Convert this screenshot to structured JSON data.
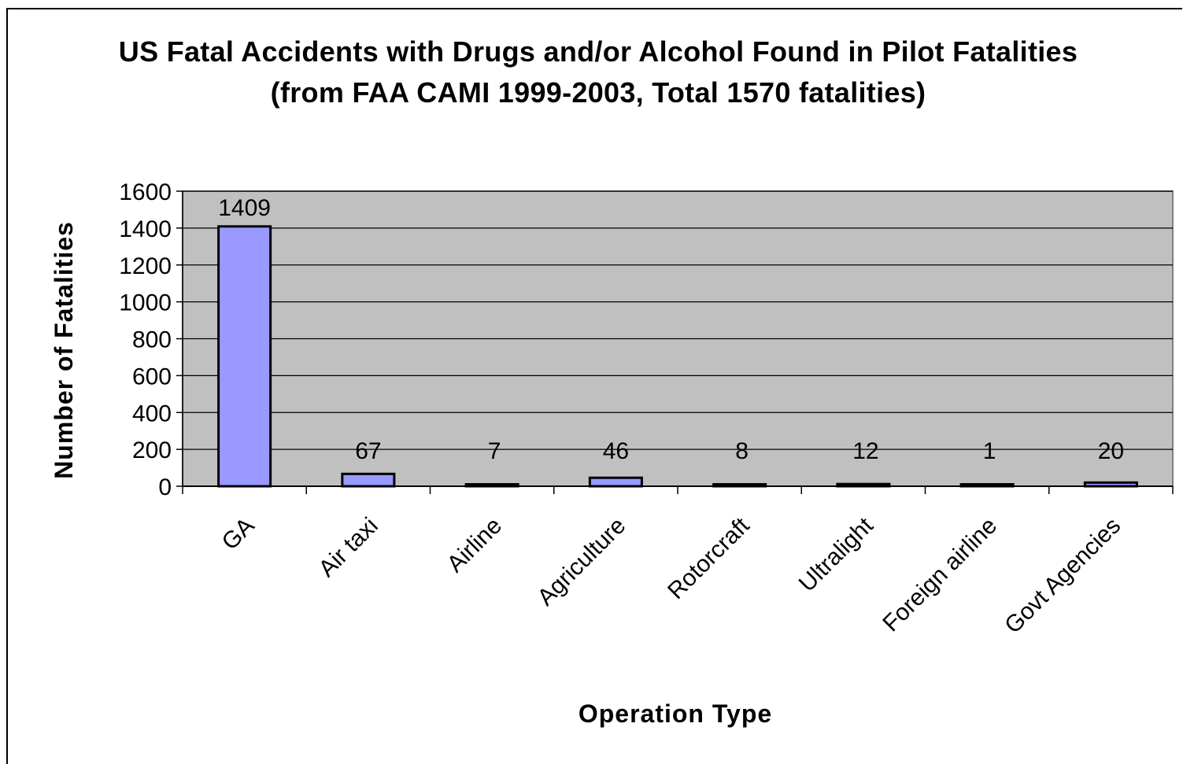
{
  "chart_data": {
    "type": "bar",
    "title": "US Fatal Accidents with Drugs and/or Alcohol Found in Pilot Fatalities (from FAA CAMI 1999-2003, Total 1570 fatalities)",
    "xlabel": "Operation Type",
    "ylabel": "Number of Fatalities",
    "categories": [
      "GA",
      "Air taxi",
      "Airline",
      "Agriculture",
      "Rotorcraft",
      "Ultralight",
      "Foreign airline",
      "Govt Agencies"
    ],
    "values": [
      1409,
      67,
      7,
      46,
      8,
      12,
      1,
      20
    ],
    "data_labels": [
      "1409",
      "67",
      "7",
      "46",
      "8",
      "12",
      "1",
      "20"
    ],
    "ylim": [
      0,
      1600
    ],
    "yticks": [
      0,
      200,
      400,
      600,
      800,
      1000,
      1200,
      1400,
      1600
    ],
    "grid": true,
    "legend": "none",
    "colors": {
      "bar_fill": "#9999FF",
      "bar_stroke": "#000000",
      "plot_background": "#C0C0C0",
      "gridline": "#000000"
    }
  }
}
